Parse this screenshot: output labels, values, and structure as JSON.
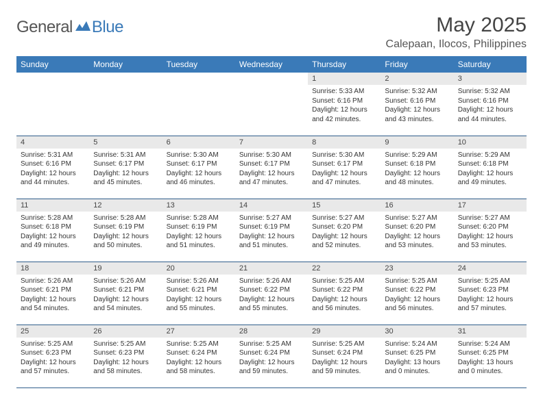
{
  "logo": {
    "general": "General",
    "blue": "Blue"
  },
  "title": "May 2025",
  "location": "Calepaan, Ilocos, Philippines",
  "colors": {
    "header_bg": "#3a7ab8",
    "header_text": "#ffffff",
    "daynum_bg": "#e9e9e9",
    "row_border": "#2f5d8a",
    "text": "#333333",
    "logo_gray": "#555555",
    "logo_blue": "#3a7ab8",
    "background": "#ffffff"
  },
  "typography": {
    "title_fontsize": 30,
    "location_fontsize": 16,
    "weekday_fontsize": 12,
    "daynum_fontsize": 11,
    "body_fontsize": 10
  },
  "weekdays": [
    "Sunday",
    "Monday",
    "Tuesday",
    "Wednesday",
    "Thursday",
    "Friday",
    "Saturday"
  ],
  "weeks": [
    [
      null,
      null,
      null,
      null,
      {
        "n": "1",
        "sr": "Sunrise: 5:33 AM",
        "ss": "Sunset: 6:16 PM",
        "d1": "Daylight: 12 hours",
        "d2": "and 42 minutes."
      },
      {
        "n": "2",
        "sr": "Sunrise: 5:32 AM",
        "ss": "Sunset: 6:16 PM",
        "d1": "Daylight: 12 hours",
        "d2": "and 43 minutes."
      },
      {
        "n": "3",
        "sr": "Sunrise: 5:32 AM",
        "ss": "Sunset: 6:16 PM",
        "d1": "Daylight: 12 hours",
        "d2": "and 44 minutes."
      }
    ],
    [
      {
        "n": "4",
        "sr": "Sunrise: 5:31 AM",
        "ss": "Sunset: 6:16 PM",
        "d1": "Daylight: 12 hours",
        "d2": "and 44 minutes."
      },
      {
        "n": "5",
        "sr": "Sunrise: 5:31 AM",
        "ss": "Sunset: 6:17 PM",
        "d1": "Daylight: 12 hours",
        "d2": "and 45 minutes."
      },
      {
        "n": "6",
        "sr": "Sunrise: 5:30 AM",
        "ss": "Sunset: 6:17 PM",
        "d1": "Daylight: 12 hours",
        "d2": "and 46 minutes."
      },
      {
        "n": "7",
        "sr": "Sunrise: 5:30 AM",
        "ss": "Sunset: 6:17 PM",
        "d1": "Daylight: 12 hours",
        "d2": "and 47 minutes."
      },
      {
        "n": "8",
        "sr": "Sunrise: 5:30 AM",
        "ss": "Sunset: 6:17 PM",
        "d1": "Daylight: 12 hours",
        "d2": "and 47 minutes."
      },
      {
        "n": "9",
        "sr": "Sunrise: 5:29 AM",
        "ss": "Sunset: 6:18 PM",
        "d1": "Daylight: 12 hours",
        "d2": "and 48 minutes."
      },
      {
        "n": "10",
        "sr": "Sunrise: 5:29 AM",
        "ss": "Sunset: 6:18 PM",
        "d1": "Daylight: 12 hours",
        "d2": "and 49 minutes."
      }
    ],
    [
      {
        "n": "11",
        "sr": "Sunrise: 5:28 AM",
        "ss": "Sunset: 6:18 PM",
        "d1": "Daylight: 12 hours",
        "d2": "and 49 minutes."
      },
      {
        "n": "12",
        "sr": "Sunrise: 5:28 AM",
        "ss": "Sunset: 6:19 PM",
        "d1": "Daylight: 12 hours",
        "d2": "and 50 minutes."
      },
      {
        "n": "13",
        "sr": "Sunrise: 5:28 AM",
        "ss": "Sunset: 6:19 PM",
        "d1": "Daylight: 12 hours",
        "d2": "and 51 minutes."
      },
      {
        "n": "14",
        "sr": "Sunrise: 5:27 AM",
        "ss": "Sunset: 6:19 PM",
        "d1": "Daylight: 12 hours",
        "d2": "and 51 minutes."
      },
      {
        "n": "15",
        "sr": "Sunrise: 5:27 AM",
        "ss": "Sunset: 6:20 PM",
        "d1": "Daylight: 12 hours",
        "d2": "and 52 minutes."
      },
      {
        "n": "16",
        "sr": "Sunrise: 5:27 AM",
        "ss": "Sunset: 6:20 PM",
        "d1": "Daylight: 12 hours",
        "d2": "and 53 minutes."
      },
      {
        "n": "17",
        "sr": "Sunrise: 5:27 AM",
        "ss": "Sunset: 6:20 PM",
        "d1": "Daylight: 12 hours",
        "d2": "and 53 minutes."
      }
    ],
    [
      {
        "n": "18",
        "sr": "Sunrise: 5:26 AM",
        "ss": "Sunset: 6:21 PM",
        "d1": "Daylight: 12 hours",
        "d2": "and 54 minutes."
      },
      {
        "n": "19",
        "sr": "Sunrise: 5:26 AM",
        "ss": "Sunset: 6:21 PM",
        "d1": "Daylight: 12 hours",
        "d2": "and 54 minutes."
      },
      {
        "n": "20",
        "sr": "Sunrise: 5:26 AM",
        "ss": "Sunset: 6:21 PM",
        "d1": "Daylight: 12 hours",
        "d2": "and 55 minutes."
      },
      {
        "n": "21",
        "sr": "Sunrise: 5:26 AM",
        "ss": "Sunset: 6:22 PM",
        "d1": "Daylight: 12 hours",
        "d2": "and 55 minutes."
      },
      {
        "n": "22",
        "sr": "Sunrise: 5:25 AM",
        "ss": "Sunset: 6:22 PM",
        "d1": "Daylight: 12 hours",
        "d2": "and 56 minutes."
      },
      {
        "n": "23",
        "sr": "Sunrise: 5:25 AM",
        "ss": "Sunset: 6:22 PM",
        "d1": "Daylight: 12 hours",
        "d2": "and 56 minutes."
      },
      {
        "n": "24",
        "sr": "Sunrise: 5:25 AM",
        "ss": "Sunset: 6:23 PM",
        "d1": "Daylight: 12 hours",
        "d2": "and 57 minutes."
      }
    ],
    [
      {
        "n": "25",
        "sr": "Sunrise: 5:25 AM",
        "ss": "Sunset: 6:23 PM",
        "d1": "Daylight: 12 hours",
        "d2": "and 57 minutes."
      },
      {
        "n": "26",
        "sr": "Sunrise: 5:25 AM",
        "ss": "Sunset: 6:23 PM",
        "d1": "Daylight: 12 hours",
        "d2": "and 58 minutes."
      },
      {
        "n": "27",
        "sr": "Sunrise: 5:25 AM",
        "ss": "Sunset: 6:24 PM",
        "d1": "Daylight: 12 hours",
        "d2": "and 58 minutes."
      },
      {
        "n": "28",
        "sr": "Sunrise: 5:25 AM",
        "ss": "Sunset: 6:24 PM",
        "d1": "Daylight: 12 hours",
        "d2": "and 59 minutes."
      },
      {
        "n": "29",
        "sr": "Sunrise: 5:25 AM",
        "ss": "Sunset: 6:24 PM",
        "d1": "Daylight: 12 hours",
        "d2": "and 59 minutes."
      },
      {
        "n": "30",
        "sr": "Sunrise: 5:24 AM",
        "ss": "Sunset: 6:25 PM",
        "d1": "Daylight: 13 hours",
        "d2": "and 0 minutes."
      },
      {
        "n": "31",
        "sr": "Sunrise: 5:24 AM",
        "ss": "Sunset: 6:25 PM",
        "d1": "Daylight: 13 hours",
        "d2": "and 0 minutes."
      }
    ]
  ]
}
